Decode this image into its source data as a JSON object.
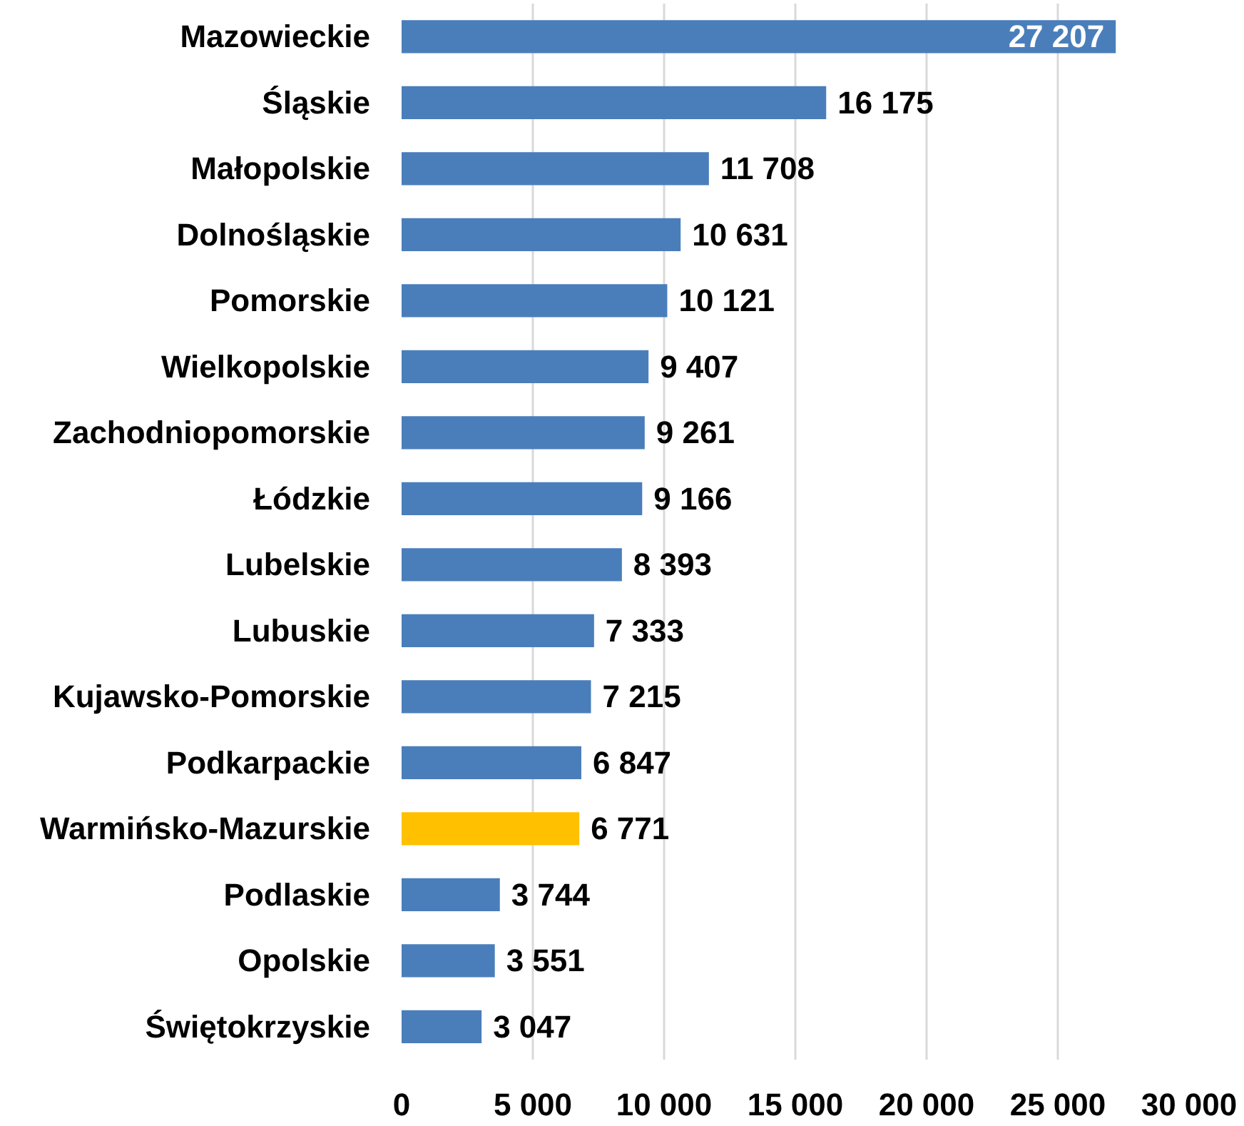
{
  "chart_data": {
    "type": "bar",
    "orientation": "horizontal",
    "categories": [
      "Mazowieckie",
      "Śląskie",
      "Małopolskie",
      "Dolnośląskie",
      "Pomorskie",
      "Wielkopolskie",
      "Zachodniopomorskie",
      "Łódzkie",
      "Lubelskie",
      "Lubuskie",
      "Kujawsko-Pomorskie",
      "Podkarpackie",
      "Warmińsko-Mazurskie",
      "Podlaskie",
      "Opolskie",
      "Świętokrzyskie"
    ],
    "values": [
      27207,
      16175,
      11708,
      10631,
      10121,
      9407,
      9261,
      9166,
      8393,
      7333,
      7215,
      6847,
      6771,
      3744,
      3551,
      3047
    ],
    "colors": [
      "#4a7ebb",
      "#4a7ebb",
      "#4a7ebb",
      "#4a7ebb",
      "#4a7ebb",
      "#4a7ebb",
      "#4a7ebb",
      "#4a7ebb",
      "#4a7ebb",
      "#4a7ebb",
      "#4a7ebb",
      "#4a7ebb",
      "#ffc000",
      "#4a7ebb",
      "#4a7ebb",
      "#4a7ebb"
    ],
    "value_labels": [
      "27 207",
      "16 175",
      "11 708",
      "10 631",
      "10 121",
      "9 407",
      "9 261",
      "9 166",
      "8 393",
      "7 333",
      "7 215",
      "6 847",
      "6 771",
      "3 744",
      "3 551",
      "3 047"
    ],
    "xlim": [
      0,
      30000
    ],
    "xticks": [
      0,
      {
        "value": 5000,
        "label": "5 000"
      },
      {
        "value": 10000,
        "label": "10 000"
      },
      {
        "value": 15000,
        "label": "15 000"
      },
      {
        "value": 20000,
        "label": "20 000"
      },
      {
        "value": 25000,
        "label": "25 000"
      },
      {
        "value": 30000,
        "label": "30 000"
      }
    ],
    "grid": "x"
  }
}
